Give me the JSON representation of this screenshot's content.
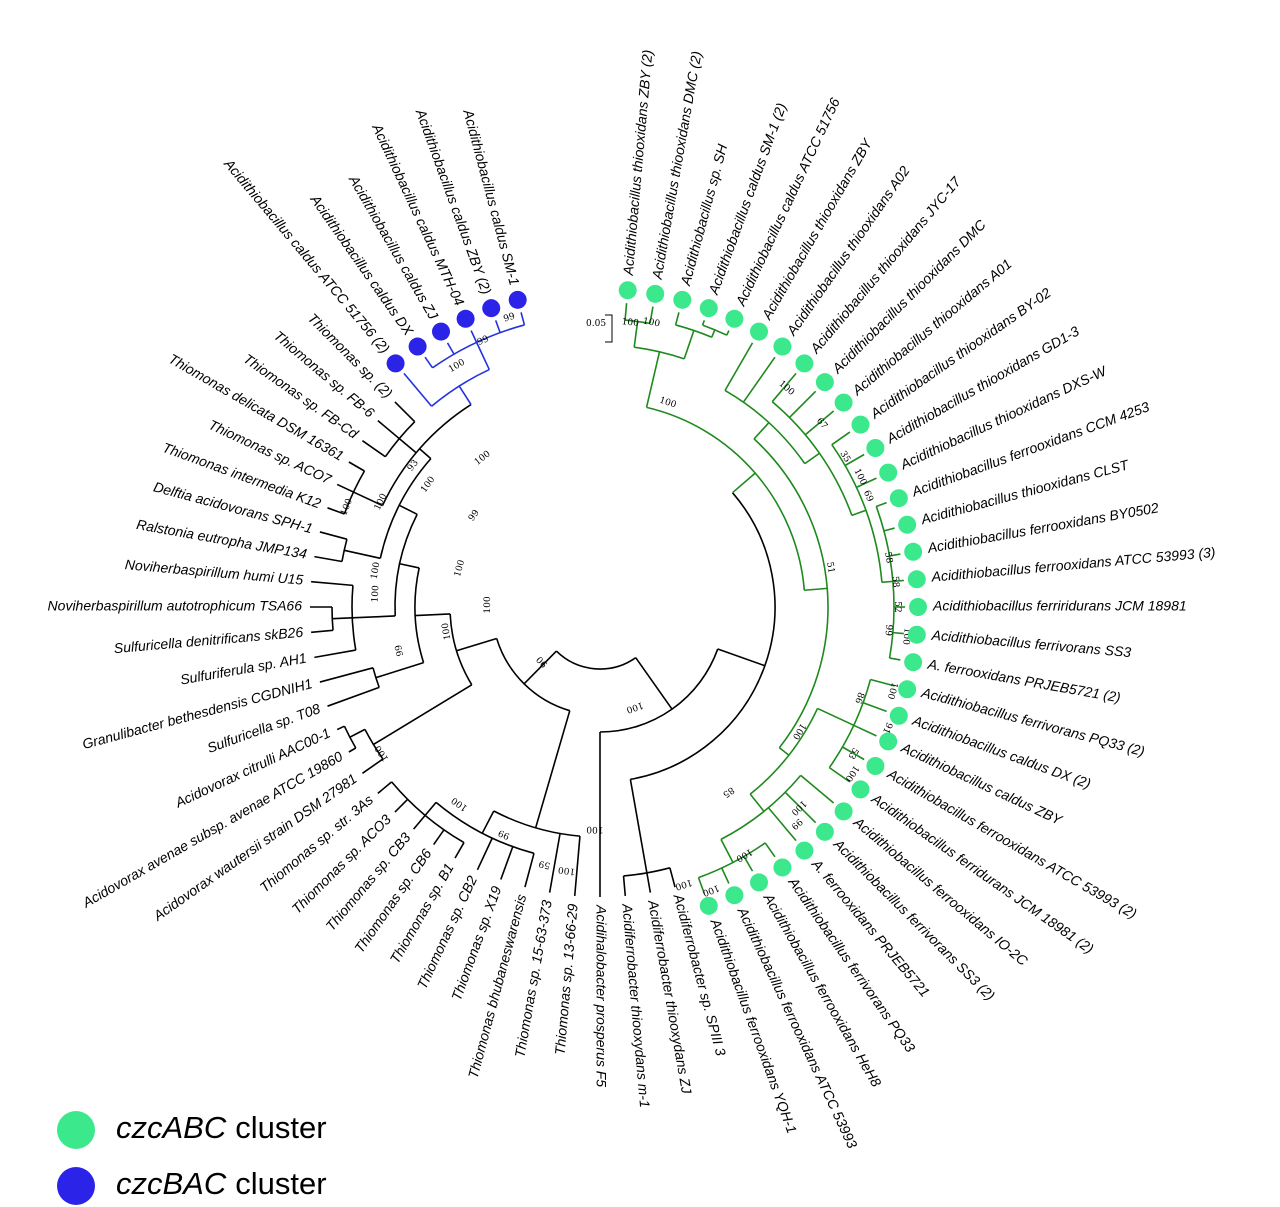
{
  "leaves": [
    {
      "label": "Acidithiobacillus thiooxidans ZBY (2)",
      "cluster": "czcABC"
    },
    {
      "label": "Acidithiobacillus thiooxidans DMC (2)",
      "cluster": "czcABC"
    },
    {
      "label": "Acidithiobacillus sp. SH",
      "cluster": "czcABC"
    },
    {
      "label": "Acidithiobacillus caldus SM-1 (2)",
      "cluster": "czcABC"
    },
    {
      "label": "Acidithiobacillus caldus ATCC 51756",
      "cluster": "czcABC"
    },
    {
      "label": "Acidithiobacillus thiooxidans ZBY",
      "cluster": "czcABC"
    },
    {
      "label": "Acidithiobacillus thiooxidans A02",
      "cluster": "czcABC"
    },
    {
      "label": "Acidithiobacillus thiooxidans JYC-17",
      "cluster": "czcABC"
    },
    {
      "label": "Acidithiobacillus thiooxidans DMC",
      "cluster": "czcABC"
    },
    {
      "label": "Acidithiobacillus thiooxidans A01",
      "cluster": "czcABC"
    },
    {
      "label": "Acidithiobacillus thiooxidans BY-02",
      "cluster": "czcABC"
    },
    {
      "label": "Acidithiobacillus thiooxidans GD1-3",
      "cluster": "czcABC"
    },
    {
      "label": "Acidithiobacillus thiooxidans DXS-W",
      "cluster": "czcABC"
    },
    {
      "label": "Acidithiobacillus ferrooxidans CCM 4253",
      "cluster": "czcABC"
    },
    {
      "label": "Acidithiobacillus thiooxidans CLST",
      "cluster": "czcABC"
    },
    {
      "label": "Acidithiobacillus ferrooxidans BY0502",
      "cluster": "czcABC"
    },
    {
      "label": "Acidithiobacillus ferrooxidans ATCC 53993 (3)",
      "cluster": "czcABC"
    },
    {
      "label": "Acidithiobacillus ferriridurans JCM 18981",
      "cluster": "czcABC"
    },
    {
      "label": "Acidithiobacillus ferrivorans SS3",
      "cluster": "czcABC"
    },
    {
      "label": "A. ferrooxidans PRJEB5721 (2)",
      "cluster": "czcABC"
    },
    {
      "label": "Acidithiobacillus ferrivorans PQ33 (2)",
      "cluster": "czcABC"
    },
    {
      "label": "Acidithiobacillus caldus DX (2)",
      "cluster": "czcABC"
    },
    {
      "label": "Acidithiobacillus caldus ZBY",
      "cluster": "czcABC"
    },
    {
      "label": "Acidithiobacillus ferrooxidans ATCC 53993 (2)",
      "cluster": "czcABC"
    },
    {
      "label": "Acidithiobacillus ferridurans JCM 18981 (2)",
      "cluster": "czcABC"
    },
    {
      "label": "Acidithiobacillus ferrooxidans IO-2C",
      "cluster": "czcABC"
    },
    {
      "label": "Acidithiobacillus ferrivorans SS3 (2)",
      "cluster": "czcABC"
    },
    {
      "label": "A. ferrooxidans PRJEB5721",
      "cluster": "czcABC"
    },
    {
      "label": "Acidithiobacillus ferrivorans PQ33",
      "cluster": "czcABC"
    },
    {
      "label": "Acidithiobacillus ferrooxidans HeH8",
      "cluster": "czcABC"
    },
    {
      "label": "Acidithiobacillus ferrooxidans ATCC 53993",
      "cluster": "czcABC"
    },
    {
      "label": "Acidithiobacillus ferrooxidans YQH-1",
      "cluster": "czcABC"
    },
    {
      "label": "Acidiferrobacter sp. SPIII 3"
    },
    {
      "label": "Acidiferrobacter thiooxydans ZJ"
    },
    {
      "label": "Acidiferrobacter thiooxydans m-1"
    },
    {
      "label": "Acidihalobacter prosperus F5"
    },
    {
      "label": "Thiomonas sp. 13-66-29"
    },
    {
      "label": "Thiomonas sp. 15-63-373"
    },
    {
      "label": "Thiomonas bhubaneswarensis"
    },
    {
      "label": "Thiomonas sp. X19"
    },
    {
      "label": "Thiomonas sp. CB2"
    },
    {
      "label": "Thiomonas sp. B1"
    },
    {
      "label": "Thiomonas sp. CB6"
    },
    {
      "label": "Thiomonas sp. CB3"
    },
    {
      "label": "Thiomonas sp. ACO3"
    },
    {
      "label": "Thiomonas sp. str. 3As"
    },
    {
      "label": "Acidovorax wautersii strain DSM 27981"
    },
    {
      "label": "Acidovorax avenae subsp. avenae ATCC 19860"
    },
    {
      "label": "Acidovorax citrulli AAC00-1"
    },
    {
      "label": "Sulfuricella sp. T08"
    },
    {
      "label": "Granulibacter bethesdensis CGDNIH1"
    },
    {
      "label": "Sulfuriferula sp. AH1"
    },
    {
      "label": "Sulfuricella denitrificans skB26"
    },
    {
      "label": "Noviherbaspirillum autotrophicum TSA66"
    },
    {
      "label": "Noviherbaspirillum humi U15"
    },
    {
      "label": "Ralstonia eutropha JMP134"
    },
    {
      "label": "Delftia acidovorans SPH-1"
    },
    {
      "label": "Thiomonas intermedia K12"
    },
    {
      "label": "Thiomonas sp. ACO7"
    },
    {
      "label": "Thiomonas delicata DSM 16361"
    },
    {
      "label": "Thiomonas sp. FB-Cd"
    },
    {
      "label": "Thiomonas sp. FB-6"
    },
    {
      "label": "Thiomonas sp. (2)"
    },
    {
      "label": "Acidithiobacillus caldus ATCC 51756 (2)",
      "cluster": "czcBAC"
    },
    {
      "label": "Acidithiobacillus caldus DX",
      "cluster": "czcBAC"
    },
    {
      "label": "Acidithiobacillus caldus ZJ",
      "cluster": "czcBAC"
    },
    {
      "label": "Acidithiobacillus caldus MTH-04",
      "cluster": "czcBAC"
    },
    {
      "label": "Acidithiobacillus caldus ZBY (2)",
      "cluster": "czcBAC"
    },
    {
      "label": "Acidithiobacillus caldus SM-1",
      "cluster": "czcBAC"
    }
  ],
  "support_values": [
    100,
    100,
    100,
    100,
    67,
    35,
    100,
    69,
    51,
    58,
    58,
    52,
    99,
    100,
    86,
    100,
    91,
    53,
    100,
    100,
    100,
    99,
    100,
    85,
    100,
    99,
    99,
    100,
    93,
    100,
    100,
    100,
    99,
    100,
    100,
    100,
    100,
    100,
    99,
    90,
    100,
    100,
    100,
    100,
    99,
    59,
    100,
    100,
    100
  ],
  "scale_bar": "0.05",
  "legend": [
    {
      "gene": "czcABC",
      "text": "cluster",
      "color": "#3ce88c"
    },
    {
      "gene": "czcBAC",
      "text": "cluster",
      "color": "#2b24e8"
    }
  ]
}
